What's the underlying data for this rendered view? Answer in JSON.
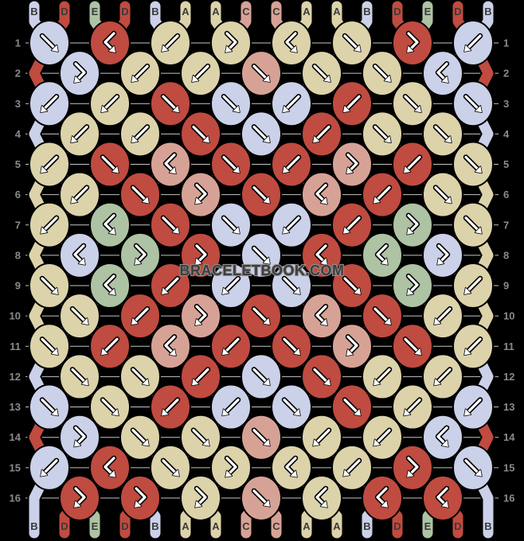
{
  "watermark": "BRACELETBOOK.COM",
  "strings": [
    "B",
    "D",
    "E",
    "D",
    "B",
    "A",
    "A",
    "C",
    "C",
    "A",
    "A",
    "B",
    "D",
    "E",
    "D",
    "B"
  ],
  "top_labels": [
    "B",
    "D",
    "E",
    "D",
    "B",
    "A",
    "A",
    "C",
    "C",
    "A",
    "A",
    "B",
    "D",
    "E",
    "D",
    "B"
  ],
  "bottom_labels": [
    "B",
    "D",
    "E",
    "D",
    "B",
    "A",
    "A",
    "C",
    "C",
    "A",
    "A",
    "B",
    "D",
    "E",
    "D",
    "B"
  ],
  "row_numbers_left": [
    "1",
    "2",
    "3",
    "4",
    "5",
    "6",
    "7",
    "8",
    "9",
    "10",
    "11",
    "12",
    "13",
    "14",
    "15",
    "16"
  ],
  "row_numbers_right": [
    "1",
    "2",
    "3",
    "4",
    "5",
    "6",
    "7",
    "8",
    "9",
    "10",
    "11",
    "12",
    "13",
    "14",
    "15",
    "16"
  ],
  "palette": {
    "A": "#dcd3aa",
    "B": "#cbd1e9",
    "C": "#d7a296",
    "D": "#c04b40",
    "E": "#adc3a3"
  },
  "ui_colors": {
    "background": "#000000",
    "grid_line": "#c4c4c4",
    "number_color": "#8a8a8a",
    "letter_color": "#3a3a3a",
    "arrow_color": "#ffffff",
    "outline_color": "#000000",
    "watermark_fill": "#3d3d3d",
    "watermark_outline": "#8f8f8f"
  },
  "knots": [
    [
      "fk",
      "bfk",
      "bk",
      "fbk",
      "bfk",
      "fk",
      "fbk",
      "bk"
    ],
    [
      "fbk",
      "bk",
      "bk",
      "fk",
      "fk",
      "fk",
      "bfk"
    ],
    [
      "bk",
      "bk",
      "fk",
      "fk",
      "bk",
      "bk",
      "fk",
      "fk"
    ],
    [
      "bk",
      "bk",
      "fk",
      "fk",
      "bk",
      "fk",
      "fk"
    ],
    [
      "bk",
      "fk",
      "bfk",
      "fk",
      "bk",
      "fbk",
      "bk",
      "fk"
    ],
    [
      "bk",
      "fk",
      "fbk",
      "fk",
      "bfk",
      "bk",
      "fk"
    ],
    [
      "bk",
      "bfk",
      "fk",
      "fk",
      "bk",
      "bk",
      "fbk",
      "fk"
    ],
    [
      "bfk",
      "fbk",
      "fbk",
      "fk",
      "bfk",
      "bfk",
      "fbk"
    ],
    [
      "fk",
      "bfk",
      "bk",
      "bk",
      "fk",
      "fk",
      "fbk",
      "bk"
    ],
    [
      "fk",
      "bk",
      "fbk",
      "fk",
      "bfk",
      "fk",
      "bk"
    ],
    [
      "fk",
      "bk",
      "bfk",
      "bk",
      "fk",
      "fbk",
      "fk",
      "bk"
    ],
    [
      "fk",
      "fk",
      "bk",
      "fk",
      "fk",
      "bk",
      "bk"
    ],
    [
      "fk",
      "fk",
      "bk",
      "bk",
      "fk",
      "fk",
      "bk",
      "bk"
    ],
    [
      "fbk",
      "fk",
      "fk",
      "fk",
      "bk",
      "bk",
      "bfk"
    ],
    [
      "bk",
      "bfk",
      "fk",
      "fbk",
      "bfk",
      "bk",
      "fbk",
      "fk"
    ],
    [
      "fbk",
      "fbk",
      "fbk",
      "fk",
      "bfk",
      "bfk",
      "bfk"
    ]
  ]
}
